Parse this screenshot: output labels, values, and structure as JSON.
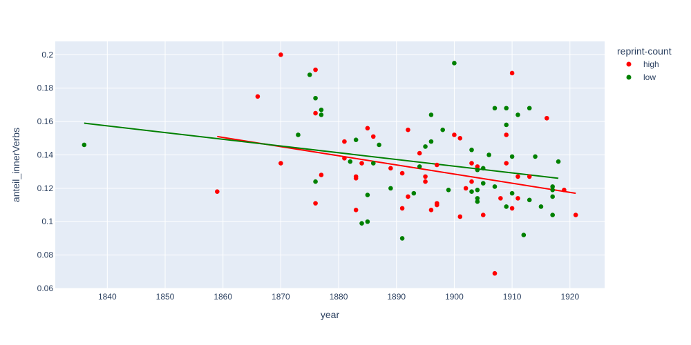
{
  "chart_data": {
    "type": "scatter",
    "title": "",
    "xlabel": "year",
    "ylabel": "anteil_innerVerbs",
    "xlim": [
      1831,
      1926
    ],
    "ylim": [
      0.06,
      0.208
    ],
    "x_ticks": [
      1840,
      1850,
      1860,
      1870,
      1880,
      1890,
      1900,
      1910,
      1920
    ],
    "y_ticks": [
      0.06,
      0.08,
      0.1,
      0.12,
      0.14,
      0.16,
      0.18,
      0.2
    ],
    "y_tick_labels": [
      "0.06",
      "0.08",
      "0.1",
      "0.12",
      "0.14",
      "0.16",
      "0.18",
      "0.2"
    ],
    "grid": true,
    "legend": {
      "title": "reprint-count",
      "placement": "right"
    },
    "series": [
      {
        "name": "high",
        "color": "#ff0000",
        "points": [
          [
            1859,
            0.118
          ],
          [
            1866,
            0.175
          ],
          [
            1870,
            0.2
          ],
          [
            1870,
            0.135
          ],
          [
            1876,
            0.191
          ],
          [
            1876,
            0.165
          ],
          [
            1876,
            0.111
          ],
          [
            1877,
            0.128
          ],
          [
            1881,
            0.148
          ],
          [
            1881,
            0.138
          ],
          [
            1883,
            0.127
          ],
          [
            1883,
            0.126
          ],
          [
            1883,
            0.107
          ],
          [
            1884,
            0.135
          ],
          [
            1885,
            0.156
          ],
          [
            1886,
            0.151
          ],
          [
            1889,
            0.132
          ],
          [
            1891,
            0.129
          ],
          [
            1891,
            0.108
          ],
          [
            1892,
            0.155
          ],
          [
            1892,
            0.115
          ],
          [
            1894,
            0.141
          ],
          [
            1895,
            0.127
          ],
          [
            1895,
            0.124
          ],
          [
            1896,
            0.107
          ],
          [
            1897,
            0.134
          ],
          [
            1897,
            0.111
          ],
          [
            1897,
            0.11
          ],
          [
            1900,
            0.152
          ],
          [
            1901,
            0.15
          ],
          [
            1901,
            0.103
          ],
          [
            1902,
            0.12
          ],
          [
            1903,
            0.135
          ],
          [
            1903,
            0.124
          ],
          [
            1904,
            0.133
          ],
          [
            1905,
            0.104
          ],
          [
            1907,
            0.069
          ],
          [
            1908,
            0.114
          ],
          [
            1909,
            0.152
          ],
          [
            1909,
            0.135
          ],
          [
            1910,
            0.189
          ],
          [
            1910,
            0.108
          ],
          [
            1911,
            0.127
          ],
          [
            1911,
            0.114
          ],
          [
            1913,
            0.127
          ],
          [
            1916,
            0.162
          ],
          [
            1919,
            0.119
          ],
          [
            1921,
            0.104
          ]
        ],
        "trendline": [
          [
            1859,
            0.151
          ],
          [
            1921,
            0.117
          ]
        ]
      },
      {
        "name": "low",
        "color": "#008000",
        "points": [
          [
            1836,
            0.146
          ],
          [
            1873,
            0.152
          ],
          [
            1875,
            0.188
          ],
          [
            1876,
            0.174
          ],
          [
            1876,
            0.124
          ],
          [
            1877,
            0.167
          ],
          [
            1877,
            0.164
          ],
          [
            1882,
            0.136
          ],
          [
            1883,
            0.149
          ],
          [
            1884,
            0.099
          ],
          [
            1885,
            0.116
          ],
          [
            1885,
            0.1
          ],
          [
            1886,
            0.135
          ],
          [
            1887,
            0.146
          ],
          [
            1889,
            0.12
          ],
          [
            1891,
            0.09
          ],
          [
            1893,
            0.117
          ],
          [
            1894,
            0.133
          ],
          [
            1895,
            0.145
          ],
          [
            1896,
            0.164
          ],
          [
            1896,
            0.148
          ],
          [
            1898,
            0.155
          ],
          [
            1899,
            0.119
          ],
          [
            1900,
            0.195
          ],
          [
            1903,
            0.143
          ],
          [
            1903,
            0.118
          ],
          [
            1904,
            0.131
          ],
          [
            1904,
            0.119
          ],
          [
            1904,
            0.114
          ],
          [
            1904,
            0.112
          ],
          [
            1905,
            0.132
          ],
          [
            1905,
            0.123
          ],
          [
            1906,
            0.14
          ],
          [
            1907,
            0.168
          ],
          [
            1907,
            0.121
          ],
          [
            1909,
            0.168
          ],
          [
            1909,
            0.158
          ],
          [
            1909,
            0.109
          ],
          [
            1910,
            0.139
          ],
          [
            1910,
            0.117
          ],
          [
            1911,
            0.164
          ],
          [
            1912,
            0.092
          ],
          [
            1913,
            0.168
          ],
          [
            1913,
            0.113
          ],
          [
            1914,
            0.139
          ],
          [
            1915,
            0.109
          ],
          [
            1917,
            0.121
          ],
          [
            1917,
            0.119
          ],
          [
            1917,
            0.115
          ],
          [
            1917,
            0.104
          ],
          [
            1918,
            0.136
          ]
        ],
        "trendline": [
          [
            1836,
            0.159
          ],
          [
            1918,
            0.126
          ]
        ]
      }
    ]
  }
}
